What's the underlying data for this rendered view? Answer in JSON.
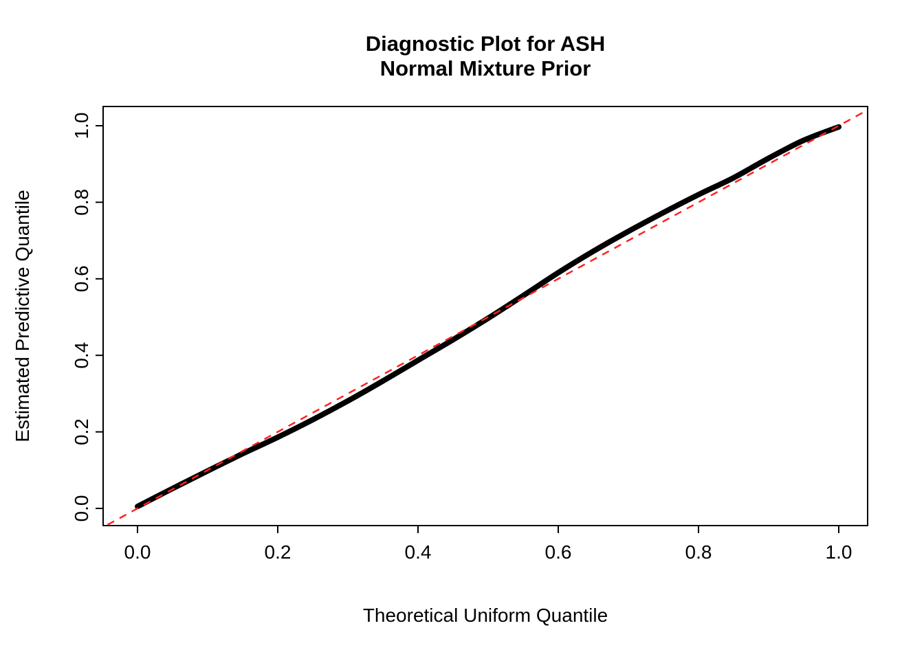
{
  "chart_data": {
    "type": "scatter",
    "title_lines": [
      "Diagnostic Plot for ASH",
      "Normal Mixture Prior"
    ],
    "xlabel": "Theoretical Uniform Quantile",
    "ylabel": "Estimated Predictive Quantile",
    "xlim": [
      -0.04,
      1.04
    ],
    "ylim": [
      -0.04,
      1.04
    ],
    "x_ticks": [
      "0.0",
      "0.2",
      "0.4",
      "0.6",
      "0.8",
      "1.0"
    ],
    "y_ticks": [
      "0.0",
      "0.2",
      "0.4",
      "0.6",
      "0.8",
      "1.0"
    ],
    "x_tick_values": [
      0,
      0.2,
      0.4,
      0.6,
      0.8,
      1.0
    ],
    "y_tick_values": [
      0,
      0.2,
      0.4,
      0.6,
      0.8,
      1.0
    ],
    "grid": false,
    "legend": "none",
    "colors": {
      "points": "#000000",
      "reference_line": "#FF2222",
      "frame": "#000000"
    },
    "series": [
      {
        "name": "estimated-predictive-quantiles",
        "style": "thick-point-curve",
        "color": "#000000",
        "x": [
          0,
          0.05,
          0.1,
          0.15,
          0.2,
          0.25,
          0.3,
          0.35,
          0.4,
          0.45,
          0.5,
          0.55,
          0.6,
          0.65,
          0.7,
          0.75,
          0.8,
          0.85,
          0.9,
          0.95,
          1.0
        ],
        "y": [
          0.005,
          0.052,
          0.098,
          0.143,
          0.186,
          0.232,
          0.281,
          0.333,
          0.387,
          0.441,
          0.497,
          0.556,
          0.616,
          0.672,
          0.724,
          0.773,
          0.82,
          0.864,
          0.915,
          0.962,
          0.997
        ]
      },
      {
        "name": "identity-reference-line",
        "style": "dashed",
        "color": "#FF2222",
        "x": [
          -0.06,
          1.06
        ],
        "y": [
          -0.06,
          1.06
        ]
      }
    ]
  }
}
